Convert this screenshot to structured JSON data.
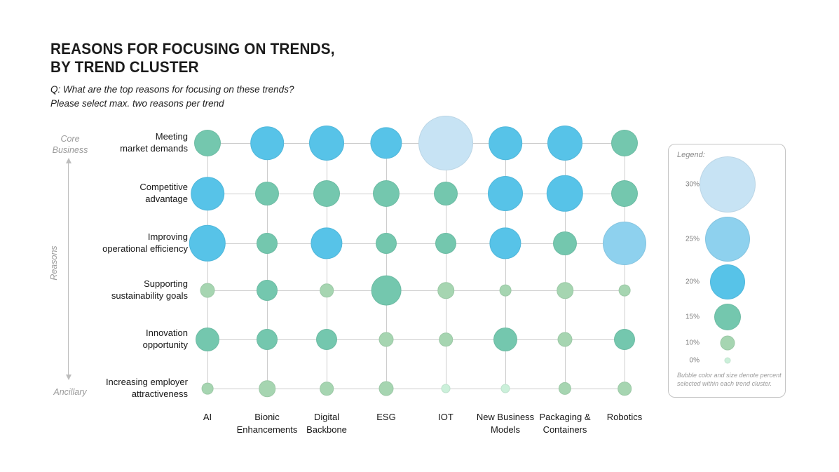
{
  "header": {
    "title": "REASONS FOR FOCUSING ON TRENDS,\nBY TREND CLUSTER",
    "subtitle": "Q: What are the top reasons for focusing on these trends?\nPlease select max. two reasons per trend"
  },
  "axis_annotations": {
    "top": "Core\nBusiness",
    "bottom": "Ancillary",
    "side": "Reasons"
  },
  "chart_data": {
    "type": "heatmap",
    "subtype": "bubble-matrix",
    "title": "REASONS FOR FOCUSING ON TRENDS, BY TREND CLUSTER",
    "question": "Q: What are the top reasons for focusing on these trends? Please select max. two reasons per trend",
    "categories_x": [
      "AI",
      "Bionic Enhancements",
      "Digital Backbone",
      "ESG",
      "IOT",
      "New Business Models",
      "Packaging & Containers",
      "Robotics"
    ],
    "categories_x_display": [
      "AI",
      "Bionic\nEnhancements",
      "Digital\nBackbone",
      "ESG",
      "IOT",
      "New Business\nModels",
      "Packaging &\nContainers",
      "Robotics"
    ],
    "categories_y": [
      "Meeting market demands",
      "Competitive advantage",
      "Improving operational efficiency",
      "Supporting sustainability goals",
      "Innovation opportunity",
      "Increasing employer attractiveness"
    ],
    "categories_y_display": [
      "Meeting\nmarket demands",
      "Competitive\nadvantage",
      "Improving\noperational efficiency",
      "Supporting\nsustainability goals",
      "Innovation\nopportunity",
      "Increasing employer\nattractiveness"
    ],
    "values_pct": [
      [
        15,
        19,
        20,
        18,
        30,
        19,
        20,
        15
      ],
      [
        19,
        14,
        15,
        15,
        14,
        20,
        21,
        15
      ],
      [
        21,
        13,
        18,
        13,
        13,
        18,
        14,
        25
      ],
      [
        10,
        13,
        9,
        17,
        11,
        7,
        11,
        7
      ],
      [
        14,
        13,
        13,
        10,
        9,
        14,
        10,
        13
      ],
      [
        7,
        11,
        9,
        10,
        4,
        4,
        8,
        9
      ]
    ],
    "value_unit": "%",
    "grid": true,
    "color_scale": [
      {
        "lt": 5,
        "color": "#cbf0da",
        "meaning": "0%"
      },
      {
        "lt": 11.5,
        "color": "#a6d5b1",
        "meaning": "10%"
      },
      {
        "lt": 17.5,
        "color": "#74c7ae",
        "meaning": "15%"
      },
      {
        "lt": 22.5,
        "color": "#57c3e8",
        "meaning": "20%"
      },
      {
        "lt": 27.5,
        "color": "#8ed1ee",
        "meaning": "25%"
      },
      {
        "lt": 999,
        "color": "#c7e3f4",
        "meaning": "30%"
      }
    ],
    "legend": {
      "label": "Legend:",
      "position": "right",
      "items": [
        {
          "label": "30%",
          "pct": 30,
          "color": "#c7e3f4",
          "diameter": 80
        },
        {
          "label": "25%",
          "pct": 25,
          "color": "#8ed1ee",
          "diameter": 64
        },
        {
          "label": "20%",
          "pct": 20,
          "color": "#57c3e8",
          "diameter": 50
        },
        {
          "label": "15%",
          "pct": 15,
          "color": "#74c7ae",
          "diameter": 38
        },
        {
          "label": "10%",
          "pct": 10,
          "color": "#a6d5b1",
          "diameter": 21
        },
        {
          "label": "0%",
          "pct": 0,
          "color": "#cbf0da",
          "diameter": 9
        }
      ],
      "note": "Bubble color and size denote percent\nselected within each trend cluster."
    }
  },
  "colors": {
    "grid_line": "#cdcdcd",
    "axis_arrow": "#bdbdbd",
    "annotation_text": "#9b9b9b"
  }
}
